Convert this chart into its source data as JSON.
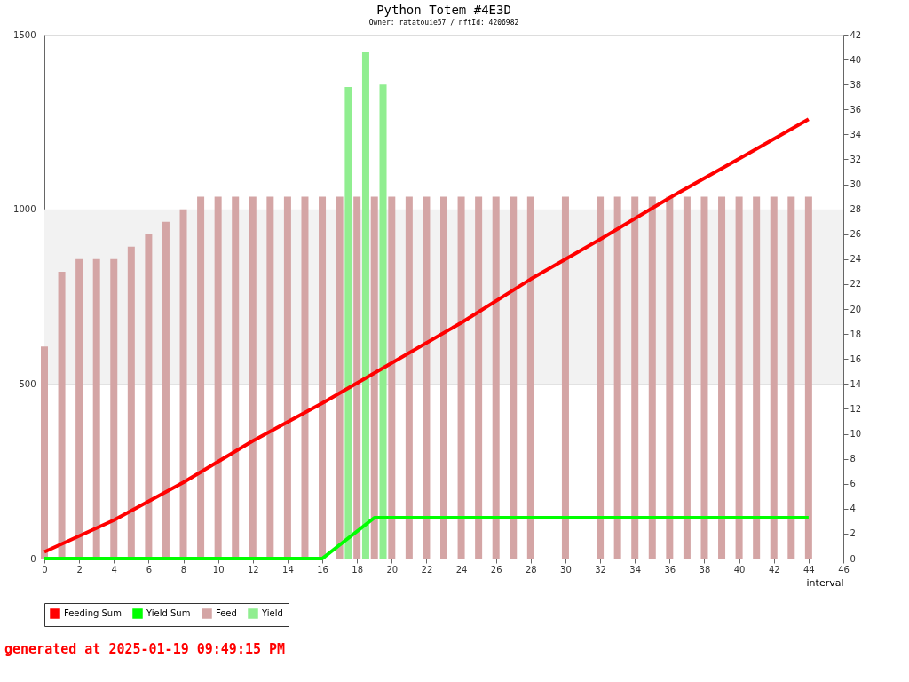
{
  "chart_data": {
    "type": "bar",
    "title": "Python Totem #4E3D",
    "subtitle": "Owner: ratatouie57 / nftId: 4206982",
    "xlabel": "interval",
    "x": [
      0,
      1,
      2,
      3,
      4,
      5,
      6,
      7,
      8,
      9,
      10,
      11,
      12,
      13,
      14,
      15,
      16,
      17,
      18,
      19,
      20,
      21,
      22,
      23,
      24,
      25,
      26,
      27,
      28,
      29,
      30,
      31,
      32,
      33,
      34,
      35,
      36,
      37,
      38,
      39,
      40,
      41,
      42,
      43,
      44
    ],
    "series": [
      {
        "name": "Feeding Sum",
        "type": "line",
        "color": "#ff0000",
        "x": [
          0,
          4,
          8,
          12,
          16,
          20,
          24,
          28,
          32,
          36,
          40,
          44
        ],
        "values": [
          19,
          110,
          218,
          337,
          445,
          560,
          675,
          800,
          914,
          1033,
          1145,
          1258
        ]
      },
      {
        "name": "Yield Sum",
        "type": "line",
        "color": "#00ff00",
        "x": [
          0,
          16,
          19,
          44
        ],
        "values": [
          0,
          0,
          117,
          117
        ]
      },
      {
        "name": "Feed",
        "axis": "y2",
        "color": "#d4a5a5",
        "values": [
          17,
          23,
          24,
          24,
          24,
          25,
          26,
          27,
          28,
          29,
          29,
          29,
          29,
          29,
          29,
          29,
          29,
          29,
          29,
          29,
          29,
          29,
          29,
          29,
          29,
          29,
          29,
          29,
          29,
          null,
          29,
          null,
          29,
          29,
          29,
          29,
          29,
          29,
          29,
          29,
          29,
          29,
          29,
          29,
          29
        ]
      },
      {
        "name": "Yield",
        "axis": "y2",
        "color": "#90ee90",
        "x": [
          17.5,
          18.5,
          19.5
        ],
        "values": [
          37.8,
          40.6,
          38.0
        ]
      }
    ],
    "xlim": [
      0,
      46
    ],
    "xticks": [
      0,
      2,
      4,
      6,
      8,
      10,
      12,
      14,
      16,
      18,
      20,
      22,
      24,
      26,
      28,
      30,
      32,
      34,
      36,
      38,
      40,
      42,
      44,
      46
    ],
    "ylim": [
      0,
      1500
    ],
    "yticks": [
      0,
      500,
      1000,
      1500
    ],
    "y2lim": [
      0,
      42
    ],
    "y2ticks": [
      0,
      2,
      4,
      6,
      8,
      10,
      12,
      14,
      16,
      18,
      20,
      22,
      24,
      26,
      28,
      30,
      32,
      34,
      36,
      38,
      40,
      42
    ],
    "bands": [
      {
        "axis": "y",
        "from": 500,
        "to": 1000,
        "color": "#f2f2f2"
      }
    ],
    "grid": "y",
    "legend": "bottom",
    "annotations": [
      "generated at 2025-01-19 09:49:15 PM"
    ]
  }
}
